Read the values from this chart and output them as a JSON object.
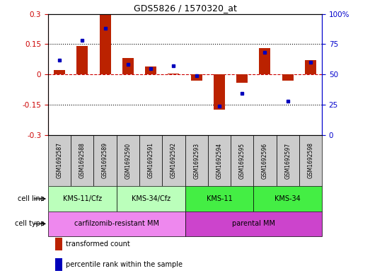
{
  "title": "GDS5826 / 1570320_at",
  "samples": [
    "GSM1692587",
    "GSM1692588",
    "GSM1692589",
    "GSM1692590",
    "GSM1692591",
    "GSM1692592",
    "GSM1692593",
    "GSM1692594",
    "GSM1692595",
    "GSM1692596",
    "GSM1692597",
    "GSM1692598"
  ],
  "red_bars": [
    0.02,
    0.14,
    0.295,
    0.08,
    0.04,
    0.005,
    -0.03,
    -0.175,
    -0.04,
    0.13,
    -0.03,
    0.07
  ],
  "blue_dots": [
    62,
    78,
    88,
    58,
    55,
    57,
    49,
    24,
    34,
    68,
    28,
    60
  ],
  "ylim_left": [
    -0.3,
    0.3
  ],
  "ylim_right": [
    0,
    100
  ],
  "yticks_left": [
    -0.3,
    -0.15,
    0,
    0.15,
    0.3
  ],
  "yticks_right": [
    0,
    25,
    50,
    75,
    100
  ],
  "cell_line_groups": [
    {
      "label": "KMS-11/Cfz",
      "start": 0,
      "end": 3,
      "color": "#bbffbb"
    },
    {
      "label": "KMS-34/Cfz",
      "start": 3,
      "end": 6,
      "color": "#bbffbb"
    },
    {
      "label": "KMS-11",
      "start": 6,
      "end": 9,
      "color": "#44ee44"
    },
    {
      "label": "KMS-34",
      "start": 9,
      "end": 12,
      "color": "#44ee44"
    }
  ],
  "cell_type_groups": [
    {
      "label": "carfilzomib-resistant MM",
      "start": 0,
      "end": 6,
      "color": "#ee88ee"
    },
    {
      "label": "parental MM",
      "start": 6,
      "end": 12,
      "color": "#cc44cc"
    }
  ],
  "sample_bg_color": "#cccccc",
  "bar_color": "#bb2200",
  "dot_color": "#0000bb",
  "zero_line_color": "#cc0000",
  "grid_color": "#000000",
  "left_axis_color": "#cc0000",
  "right_axis_color": "#0000cc"
}
